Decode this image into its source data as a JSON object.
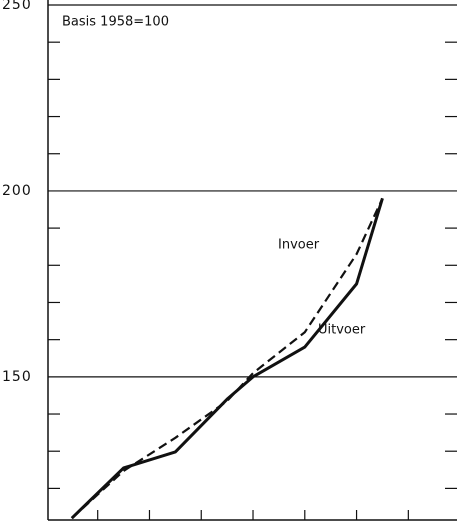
{
  "chart_data": {
    "type": "line",
    "annotation": "Basis 1958=100",
    "x": [
      0,
      1,
      2,
      3,
      3.5,
      4.5,
      5.5,
      6
    ],
    "series": [
      {
        "name": "Uitvoer",
        "color": "#111111",
        "dash": false,
        "values": [
          112,
          125.5,
          129.8,
          144,
          150,
          158,
          175,
          198
        ]
      },
      {
        "name": "Invoer",
        "color": "#111111",
        "dash": true,
        "values": [
          112,
          124.7,
          133.6,
          143.5,
          151,
          162,
          183,
          198
        ]
      }
    ],
    "xlim": [
      -0.46,
      7.44
    ],
    "xticks": [
      0.5,
      1.5,
      2.5,
      3.5,
      4.5,
      5.5,
      6.5
    ],
    "ylim": [
      111.5,
      250
    ],
    "yticks": [
      150,
      200,
      250
    ],
    "minor_yticks": [
      120,
      130,
      140,
      160,
      170,
      180,
      190,
      210,
      220,
      230,
      240
    ],
    "grid": true
  }
}
